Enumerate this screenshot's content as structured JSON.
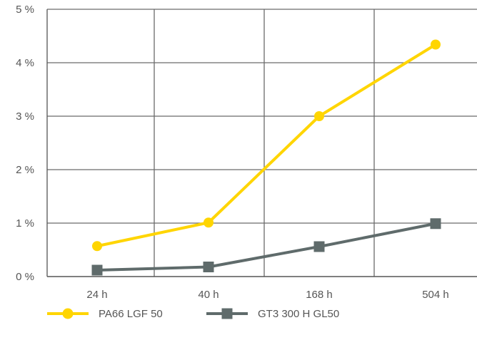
{
  "chart_data": {
    "type": "line",
    "categories": [
      "24 h",
      "40 h",
      "168 h",
      "504 h"
    ],
    "y_tick_labels": [
      "0 %",
      "1 %",
      "2 %",
      "3 %",
      "4 %",
      "5 %"
    ],
    "ylim": [
      0,
      5
    ],
    "grid": true,
    "legend_position": "bottom-left",
    "series": [
      {
        "name": "PA66 LGF 50",
        "values": [
          0.57,
          1.01,
          3.0,
          4.34
        ],
        "color": "#FFD500",
        "marker": "circle"
      },
      {
        "name": "GT3 300 H GL50",
        "values": [
          0.12,
          0.18,
          0.56,
          0.99
        ],
        "color": "#5F6B6B",
        "marker": "square"
      }
    ],
    "gridline_color": "#6b6b6b",
    "axis_color": "#555555"
  }
}
